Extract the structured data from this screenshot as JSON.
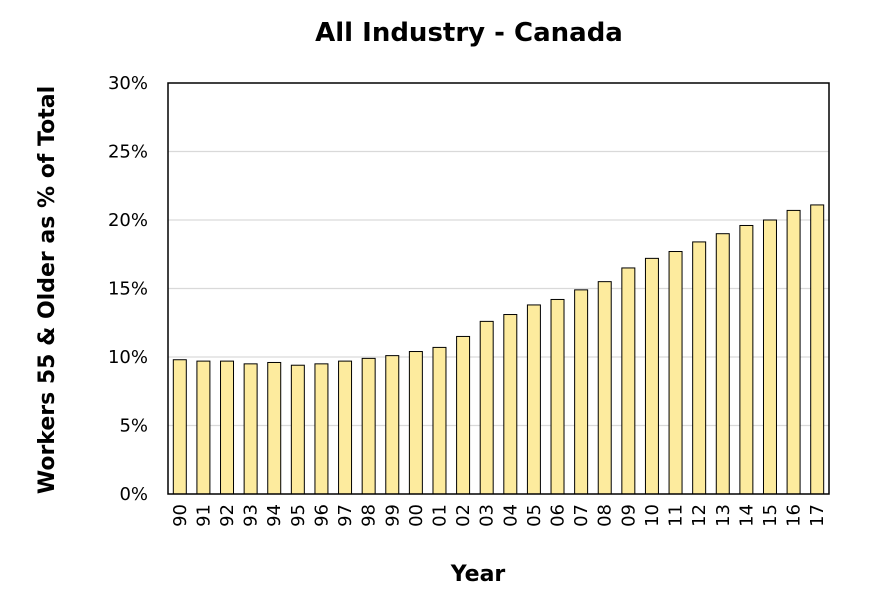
{
  "chart_data": {
    "type": "bar",
    "title": "All Industry - Canada",
    "xlabel": "Year",
    "ylabel": "Workers 55 & Older as % of Total",
    "categories": [
      "90",
      "91",
      "92",
      "93",
      "94",
      "95",
      "96",
      "97",
      "98",
      "99",
      "00",
      "01",
      "02",
      "03",
      "04",
      "05",
      "06",
      "07",
      "08",
      "09",
      "10",
      "11",
      "12",
      "13",
      "14",
      "15",
      "16",
      "17"
    ],
    "series": [
      {
        "values": [
          9.8,
          9.7,
          9.7,
          9.5,
          9.6,
          9.4,
          9.5,
          9.7,
          9.9,
          10.1,
          10.4,
          10.7,
          11.5,
          12.6,
          13.1,
          13.8,
          14.2,
          14.9,
          15.5,
          16.5,
          17.2,
          17.7,
          18.4,
          19.0,
          19.6,
          20.0,
          20.7,
          21.1
        ]
      }
    ],
    "ylim": [
      0,
      30
    ],
    "yticks": [
      "0%",
      "5%",
      "10%",
      "15%",
      "20%",
      "25%",
      "30%"
    ],
    "grid": true,
    "legend": "none",
    "colors": {
      "bar_fill": "#fdeb9e",
      "bar_stroke": "#000000",
      "grid": "#d9d9d9"
    }
  }
}
